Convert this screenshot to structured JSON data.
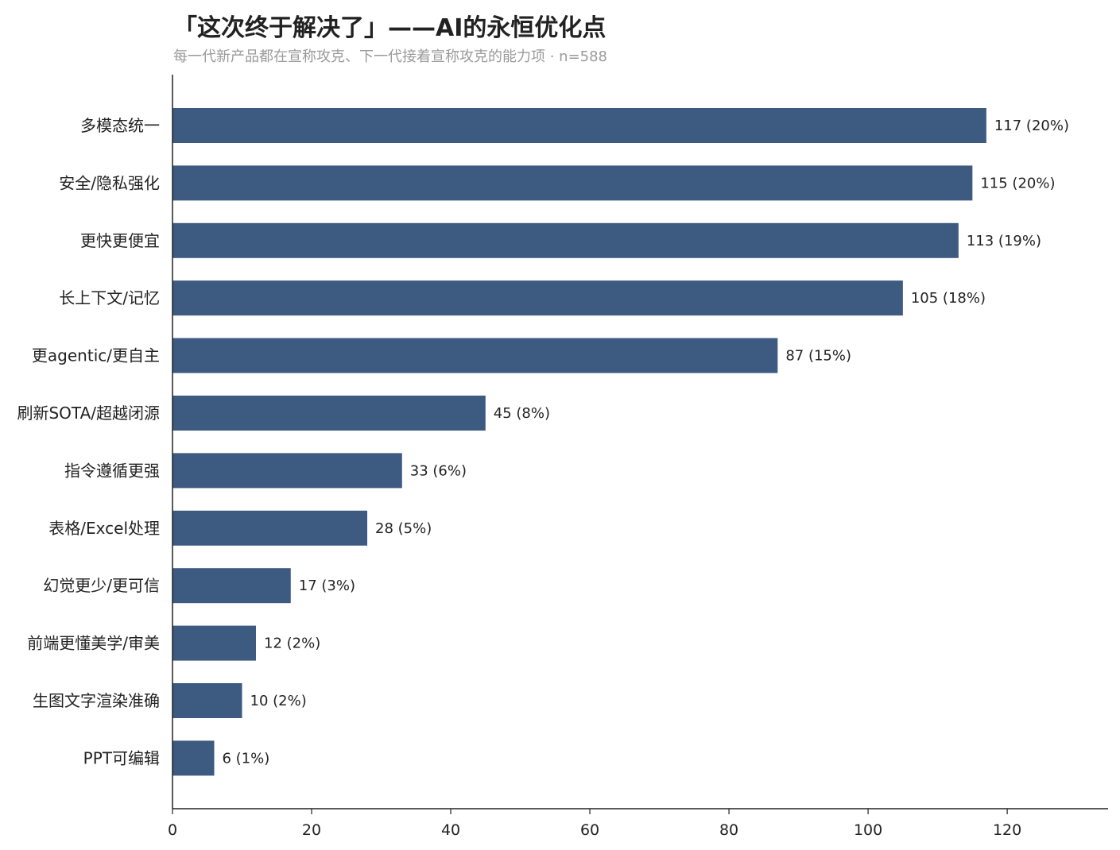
{
  "chart_data": {
    "type": "bar",
    "orientation": "horizontal",
    "title": "「这次终于解决了」——AI的永恒优化点",
    "subtitle": "每一代新产品都在宣称攻克、下一代接着宣称攻克的能力项 · n=588",
    "categories": [
      "多模态统一",
      "安全/隐私强化",
      "更快更便宜",
      "长上下文/记忆",
      "更agentic/更自主",
      "刷新SOTA/超越闭源",
      "指令遵循更强",
      "表格/Excel处理",
      "幻觉更少/更可信",
      "前端更懂美学/审美",
      "生图文字渲染准确",
      "PPT可编辑"
    ],
    "values": [
      117,
      115,
      113,
      105,
      87,
      45,
      33,
      28,
      17,
      12,
      10,
      6
    ],
    "value_labels": [
      "117 (20%)",
      "115 (20%)",
      "113 (19%)",
      "105 (18%)",
      "87 (15%)",
      "45 (8%)",
      "33 (6%)",
      "28 (5%)",
      "17 (3%)",
      "12 (2%)",
      "10 (2%)",
      "6 (1%)"
    ],
    "xlim": [
      0,
      134.5
    ],
    "xticks": [
      0,
      20,
      40,
      60,
      80,
      100,
      120
    ],
    "xlabel": "",
    "ylabel": "",
    "grid": false,
    "bar_color": "#3d5a80"
  }
}
